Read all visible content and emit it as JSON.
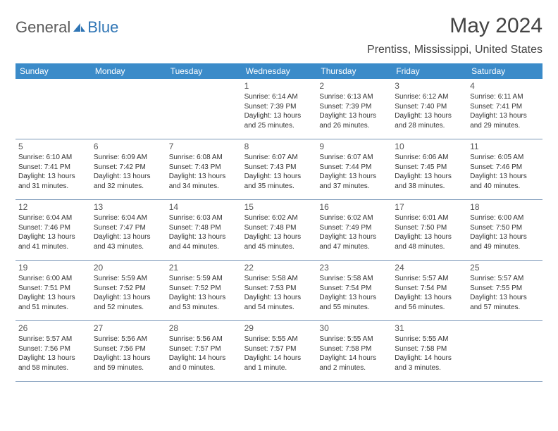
{
  "logo": {
    "text1": "General",
    "text2": "Blue",
    "icon_color": "#2f75b5"
  },
  "title": "May 2024",
  "location": "Prentiss, Mississippi, United States",
  "colors": {
    "header_bg": "#3b8bc9",
    "header_text": "#ffffff",
    "grid_border": "#7a97b8",
    "body_text": "#333333",
    "daynum_text": "#555555",
    "bg": "#ffffff"
  },
  "fonts": {
    "title_size": 30,
    "location_size": 16,
    "header_size": 12,
    "daynum_size": 12,
    "body_size": 10
  },
  "weekdays": [
    "Sunday",
    "Monday",
    "Tuesday",
    "Wednesday",
    "Thursday",
    "Friday",
    "Saturday"
  ],
  "weeks": [
    [
      null,
      null,
      null,
      {
        "n": "1",
        "sr": "6:14 AM",
        "ss": "7:39 PM",
        "dl1": "Daylight: 13 hours",
        "dl2": "and 25 minutes."
      },
      {
        "n": "2",
        "sr": "6:13 AM",
        "ss": "7:39 PM",
        "dl1": "Daylight: 13 hours",
        "dl2": "and 26 minutes."
      },
      {
        "n": "3",
        "sr": "6:12 AM",
        "ss": "7:40 PM",
        "dl1": "Daylight: 13 hours",
        "dl2": "and 28 minutes."
      },
      {
        "n": "4",
        "sr": "6:11 AM",
        "ss": "7:41 PM",
        "dl1": "Daylight: 13 hours",
        "dl2": "and 29 minutes."
      }
    ],
    [
      {
        "n": "5",
        "sr": "6:10 AM",
        "ss": "7:41 PM",
        "dl1": "Daylight: 13 hours",
        "dl2": "and 31 minutes."
      },
      {
        "n": "6",
        "sr": "6:09 AM",
        "ss": "7:42 PM",
        "dl1": "Daylight: 13 hours",
        "dl2": "and 32 minutes."
      },
      {
        "n": "7",
        "sr": "6:08 AM",
        "ss": "7:43 PM",
        "dl1": "Daylight: 13 hours",
        "dl2": "and 34 minutes."
      },
      {
        "n": "8",
        "sr": "6:07 AM",
        "ss": "7:43 PM",
        "dl1": "Daylight: 13 hours",
        "dl2": "and 35 minutes."
      },
      {
        "n": "9",
        "sr": "6:07 AM",
        "ss": "7:44 PM",
        "dl1": "Daylight: 13 hours",
        "dl2": "and 37 minutes."
      },
      {
        "n": "10",
        "sr": "6:06 AM",
        "ss": "7:45 PM",
        "dl1": "Daylight: 13 hours",
        "dl2": "and 38 minutes."
      },
      {
        "n": "11",
        "sr": "6:05 AM",
        "ss": "7:46 PM",
        "dl1": "Daylight: 13 hours",
        "dl2": "and 40 minutes."
      }
    ],
    [
      {
        "n": "12",
        "sr": "6:04 AM",
        "ss": "7:46 PM",
        "dl1": "Daylight: 13 hours",
        "dl2": "and 41 minutes."
      },
      {
        "n": "13",
        "sr": "6:04 AM",
        "ss": "7:47 PM",
        "dl1": "Daylight: 13 hours",
        "dl2": "and 43 minutes."
      },
      {
        "n": "14",
        "sr": "6:03 AM",
        "ss": "7:48 PM",
        "dl1": "Daylight: 13 hours",
        "dl2": "and 44 minutes."
      },
      {
        "n": "15",
        "sr": "6:02 AM",
        "ss": "7:48 PM",
        "dl1": "Daylight: 13 hours",
        "dl2": "and 45 minutes."
      },
      {
        "n": "16",
        "sr": "6:02 AM",
        "ss": "7:49 PM",
        "dl1": "Daylight: 13 hours",
        "dl2": "and 47 minutes."
      },
      {
        "n": "17",
        "sr": "6:01 AM",
        "ss": "7:50 PM",
        "dl1": "Daylight: 13 hours",
        "dl2": "and 48 minutes."
      },
      {
        "n": "18",
        "sr": "6:00 AM",
        "ss": "7:50 PM",
        "dl1": "Daylight: 13 hours",
        "dl2": "and 49 minutes."
      }
    ],
    [
      {
        "n": "19",
        "sr": "6:00 AM",
        "ss": "7:51 PM",
        "dl1": "Daylight: 13 hours",
        "dl2": "and 51 minutes."
      },
      {
        "n": "20",
        "sr": "5:59 AM",
        "ss": "7:52 PM",
        "dl1": "Daylight: 13 hours",
        "dl2": "and 52 minutes."
      },
      {
        "n": "21",
        "sr": "5:59 AM",
        "ss": "7:52 PM",
        "dl1": "Daylight: 13 hours",
        "dl2": "and 53 minutes."
      },
      {
        "n": "22",
        "sr": "5:58 AM",
        "ss": "7:53 PM",
        "dl1": "Daylight: 13 hours",
        "dl2": "and 54 minutes."
      },
      {
        "n": "23",
        "sr": "5:58 AM",
        "ss": "7:54 PM",
        "dl1": "Daylight: 13 hours",
        "dl2": "and 55 minutes."
      },
      {
        "n": "24",
        "sr": "5:57 AM",
        "ss": "7:54 PM",
        "dl1": "Daylight: 13 hours",
        "dl2": "and 56 minutes."
      },
      {
        "n": "25",
        "sr": "5:57 AM",
        "ss": "7:55 PM",
        "dl1": "Daylight: 13 hours",
        "dl2": "and 57 minutes."
      }
    ],
    [
      {
        "n": "26",
        "sr": "5:57 AM",
        "ss": "7:56 PM",
        "dl1": "Daylight: 13 hours",
        "dl2": "and 58 minutes."
      },
      {
        "n": "27",
        "sr": "5:56 AM",
        "ss": "7:56 PM",
        "dl1": "Daylight: 13 hours",
        "dl2": "and 59 minutes."
      },
      {
        "n": "28",
        "sr": "5:56 AM",
        "ss": "7:57 PM",
        "dl1": "Daylight: 14 hours",
        "dl2": "and 0 minutes."
      },
      {
        "n": "29",
        "sr": "5:55 AM",
        "ss": "7:57 PM",
        "dl1": "Daylight: 14 hours",
        "dl2": "and 1 minute."
      },
      {
        "n": "30",
        "sr": "5:55 AM",
        "ss": "7:58 PM",
        "dl1": "Daylight: 14 hours",
        "dl2": "and 2 minutes."
      },
      {
        "n": "31",
        "sr": "5:55 AM",
        "ss": "7:58 PM",
        "dl1": "Daylight: 14 hours",
        "dl2": "and 3 minutes."
      },
      null
    ]
  ]
}
